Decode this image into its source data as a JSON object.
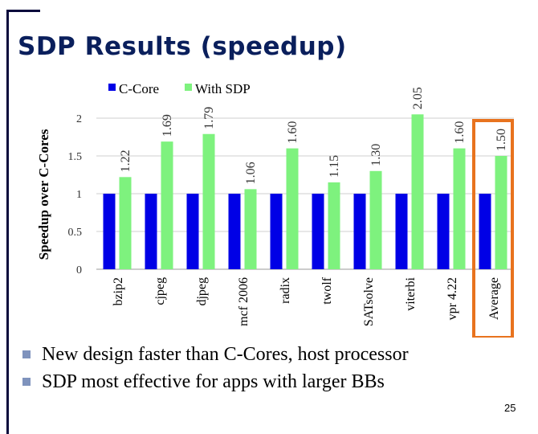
{
  "slide": {
    "title": "SDP Results (speedup)",
    "bullets": [
      "New design faster than C-Cores, host processor",
      "SDP most effective for apps with larger BBs"
    ],
    "page_number": "25"
  },
  "chart_data": {
    "type": "bar",
    "ylabel": "Speedup  over C-Cores",
    "categories": [
      "bzip2",
      "cjpeg",
      "djpeg",
      "mcf 2006",
      "radix",
      "twolf",
      "SATsolve",
      "viterbi",
      "vpr 4.22",
      "Average"
    ],
    "series": [
      {
        "name": "C-Core",
        "color": "#0000e6",
        "values": [
          1,
          1,
          1,
          1,
          1,
          1,
          1,
          1,
          1,
          1
        ]
      },
      {
        "name": "With SDP",
        "color": "#7ef27e",
        "values": [
          1.22,
          1.69,
          1.79,
          1.06,
          1.6,
          1.15,
          1.3,
          2.05,
          1.6,
          1.5
        ]
      }
    ],
    "data_labels": [
      "1.22",
      "1.69",
      "1.79",
      "1.06",
      "1.60",
      "1.15",
      "1.30",
      "2.05",
      "1.60",
      "1.50"
    ],
    "yticks": [
      "0",
      "0.5",
      "1",
      "1.5",
      "2"
    ],
    "ylim": [
      0,
      2
    ],
    "grid": true,
    "legend": "top-left",
    "highlight": {
      "category": "Average",
      "color": "#e8731e"
    }
  }
}
